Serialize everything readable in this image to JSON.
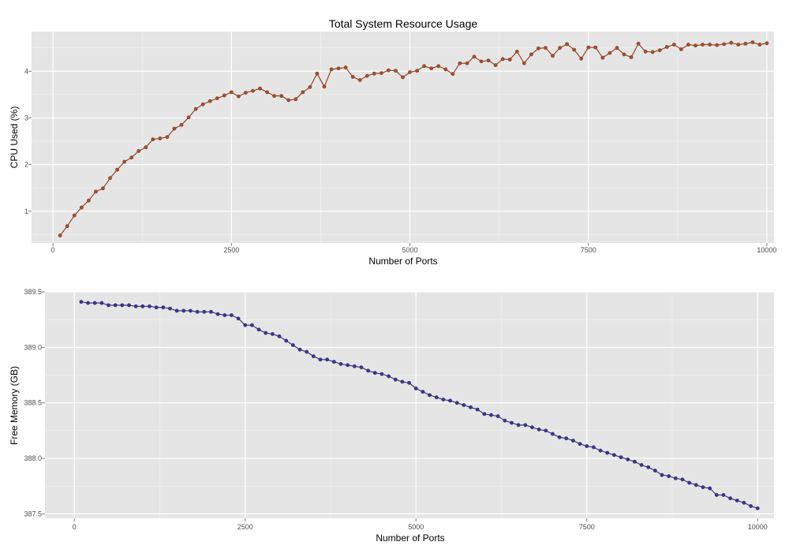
{
  "figure": {
    "title": "Total System Resource Usage"
  },
  "chart_data": [
    {
      "type": "line",
      "xlabel": "Number of Ports",
      "ylabel": "CPU Used (%)",
      "xlim": [
        -300,
        10100
      ],
      "ylim": [
        0.32,
        4.85
      ],
      "xticks": [
        0,
        2500,
        5000,
        7500,
        10000
      ],
      "xtick_labels": [
        "0",
        "2500",
        "5000",
        "7500",
        "10000"
      ],
      "yticks": [
        1,
        2,
        3,
        4
      ],
      "ytick_labels": [
        "1",
        "2",
        "3",
        "4"
      ],
      "grid": true,
      "legend": "none",
      "line_color": "#8b3a1e",
      "point_color": "#a0522d",
      "series": [
        {
          "x": [
            100,
            200,
            300,
            400,
            500,
            600,
            700,
            800,
            900,
            1000,
            1100,
            1200,
            1300,
            1400,
            1500,
            1600,
            1700,
            1800,
            1900,
            2000,
            2100,
            2200,
            2300,
            2400,
            2500,
            2600,
            2700,
            2800,
            2900,
            3000,
            3100,
            3200,
            3300,
            3400,
            3500,
            3600,
            3700,
            3800,
            3900,
            4000,
            4100,
            4200,
            4300,
            4400,
            4500,
            4600,
            4700,
            4800,
            4900,
            5000,
            5100,
            5200,
            5300,
            5400,
            5500,
            5600,
            5700,
            5800,
            5900,
            6000,
            6100,
            6200,
            6300,
            6400,
            6500,
            6600,
            6700,
            6800,
            6900,
            7000,
            7100,
            7200,
            7300,
            7400,
            7500,
            7600,
            7700,
            7800,
            7900,
            8000,
            8100,
            8200,
            8300,
            8400,
            8500,
            8600,
            8700,
            8800,
            8900,
            9000,
            9100,
            9200,
            9300,
            9400,
            9500,
            9600,
            9700,
            9800,
            9900,
            10000
          ],
          "values": [
            0.48,
            0.68,
            0.91,
            1.08,
            1.23,
            1.42,
            1.49,
            1.71,
            1.89,
            2.06,
            2.15,
            2.29,
            2.37,
            2.54,
            2.56,
            2.59,
            2.77,
            2.85,
            3.01,
            3.19,
            3.29,
            3.36,
            3.42,
            3.48,
            3.55,
            3.46,
            3.54,
            3.58,
            3.63,
            3.55,
            3.47,
            3.47,
            3.38,
            3.4,
            3.55,
            3.66,
            3.95,
            3.67,
            4.04,
            4.06,
            4.08,
            3.88,
            3.81,
            3.9,
            3.95,
            3.96,
            4.02,
            4.01,
            3.87,
            3.98,
            4.01,
            4.11,
            4.06,
            4.11,
            4.04,
            3.94,
            4.17,
            4.17,
            4.31,
            4.21,
            4.23,
            4.13,
            4.26,
            4.25,
            4.42,
            4.17,
            4.36,
            4.49,
            4.5,
            4.33,
            4.5,
            4.58,
            4.46,
            4.27,
            4.51,
            4.51,
            4.29,
            4.39,
            4.5,
            4.36,
            4.3,
            4.59,
            4.42,
            4.41,
            4.45,
            4.52,
            4.57,
            4.47,
            4.57,
            4.55,
            4.57,
            4.57,
            4.56,
            4.58,
            4.61,
            4.57,
            4.59,
            4.62,
            4.57,
            4.6
          ]
        }
      ]
    },
    {
      "type": "line",
      "xlabel": "Number of Ports",
      "ylabel": "Free Memory (GB)",
      "xlim": [
        -430,
        10240
      ],
      "ylim": [
        387.46,
        389.5
      ],
      "xticks": [
        0,
        2500,
        5000,
        7500,
        10000
      ],
      "xtick_labels": [
        "0",
        "2500",
        "5000",
        "7500",
        "10000"
      ],
      "yticks": [
        387.5,
        388.0,
        388.5,
        389.0,
        389.5
      ],
      "ytick_labels": [
        "387.5",
        "388.0",
        "388.5",
        "389.0",
        "389.5"
      ],
      "grid": true,
      "legend": "none",
      "line_color": "#2e2a78",
      "point_color": "#3b3590",
      "series": [
        {
          "x": [
            100,
            200,
            300,
            400,
            500,
            600,
            700,
            800,
            900,
            1000,
            1100,
            1200,
            1300,
            1400,
            1500,
            1600,
            1700,
            1800,
            1900,
            2000,
            2100,
            2200,
            2300,
            2400,
            2500,
            2600,
            2700,
            2800,
            2900,
            3000,
            3100,
            3200,
            3300,
            3400,
            3500,
            3600,
            3700,
            3800,
            3900,
            4000,
            4100,
            4200,
            4300,
            4400,
            4500,
            4600,
            4700,
            4800,
            4900,
            5000,
            5100,
            5200,
            5300,
            5400,
            5500,
            5600,
            5700,
            5800,
            5900,
            6000,
            6100,
            6200,
            6300,
            6400,
            6500,
            6600,
            6700,
            6800,
            6900,
            7000,
            7100,
            7200,
            7300,
            7400,
            7500,
            7600,
            7700,
            7800,
            7900,
            8000,
            8100,
            8200,
            8300,
            8400,
            8500,
            8600,
            8700,
            8800,
            8900,
            9000,
            9100,
            9200,
            9300,
            9400,
            9500,
            9600,
            9700,
            9800,
            9900,
            10000
          ],
          "values": [
            389.41,
            389.4,
            389.4,
            389.4,
            389.38,
            389.38,
            389.38,
            389.38,
            389.37,
            389.37,
            389.37,
            389.36,
            389.36,
            389.35,
            389.33,
            389.33,
            389.33,
            389.32,
            389.32,
            389.32,
            389.3,
            389.29,
            389.29,
            389.26,
            389.2,
            389.2,
            389.16,
            389.13,
            389.12,
            389.1,
            389.06,
            389.02,
            388.98,
            388.96,
            388.92,
            388.89,
            388.89,
            388.87,
            388.85,
            388.84,
            388.83,
            388.82,
            388.79,
            388.77,
            388.76,
            388.74,
            388.71,
            388.69,
            388.68,
            388.63,
            388.6,
            388.57,
            388.55,
            388.53,
            388.52,
            388.5,
            388.48,
            388.46,
            388.44,
            388.4,
            388.39,
            388.38,
            388.34,
            388.32,
            388.3,
            388.3,
            388.28,
            388.26,
            388.25,
            388.22,
            388.19,
            388.18,
            388.16,
            388.13,
            388.11,
            388.1,
            388.07,
            388.05,
            388.03,
            388.01,
            387.99,
            387.97,
            387.94,
            387.92,
            387.89,
            387.85,
            387.84,
            387.82,
            387.81,
            387.78,
            387.76,
            387.74,
            387.73,
            387.67,
            387.67,
            387.64,
            387.62,
            387.6,
            387.57,
            387.55
          ]
        }
      ]
    }
  ]
}
